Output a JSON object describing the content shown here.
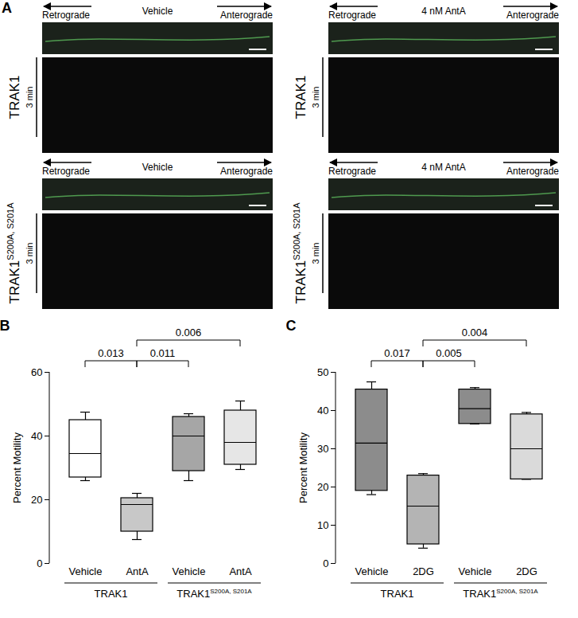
{
  "panel_a": {
    "letter": "A",
    "retrograde": "Retrograde",
    "anterograde": "Anterograde",
    "time_label": "3 min",
    "panels": [
      {
        "construct": {
          "name": "TRAK1"
        },
        "condition": "Vehicle"
      },
      {
        "construct": {
          "name": "TRAK1"
        },
        "condition": "4 nM AntA"
      },
      {
        "construct": {
          "name": "TRAK1",
          "superscript": "S200A, S201A"
        },
        "condition": "Vehicle"
      },
      {
        "construct": {
          "name": "TRAK1",
          "superscript": "S200A, S201A"
        },
        "condition": "4 nM AntA"
      }
    ]
  },
  "chart_data": [
    {
      "type": "box",
      "letter": "B",
      "ylabel": "Percent Motility",
      "categories": [
        "Vehicle",
        "AntA",
        "Vehicle",
        "AntA"
      ],
      "groups": [
        {
          "name": "TRAK1",
          "members": [
            0,
            1
          ]
        },
        {
          "name": "TRAK1",
          "superscript": "S200A, S201A",
          "members": [
            2,
            3
          ]
        }
      ],
      "boxes": [
        {
          "min": 26,
          "q1": 27,
          "median": 34.5,
          "q3": 45,
          "max": 47.5
        },
        {
          "min": 7.5,
          "q1": 10,
          "median": 18.5,
          "q3": 20.5,
          "max": 22
        },
        {
          "min": 26,
          "q1": 29,
          "median": 40,
          "q3": 46,
          "max": 47
        },
        {
          "min": 29.5,
          "q1": 31,
          "median": 38,
          "q3": 48,
          "max": 51
        }
      ],
      "colors": [
        "#ffffff",
        "#c8c8c8",
        "#a6a6a6",
        "#e6e6e6"
      ],
      "ylim": [
        0,
        60
      ],
      "yticks": [
        0,
        20,
        40,
        60
      ],
      "comparisons": [
        {
          "between": [
            0,
            1
          ],
          "p": 0.013
        },
        {
          "between": [
            1,
            2
          ],
          "p": 0.011
        },
        {
          "between": [
            1,
            3
          ],
          "p": 0.006
        }
      ]
    },
    {
      "type": "box",
      "letter": "C",
      "ylabel": "Percent Motility",
      "categories": [
        "Vehicle",
        "2DG",
        "Vehicle",
        "2DG"
      ],
      "groups": [
        {
          "name": "TRAK1",
          "members": [
            0,
            1
          ]
        },
        {
          "name": "TRAK1",
          "superscript": "S200A, S201A",
          "members": [
            2,
            3
          ]
        }
      ],
      "boxes": [
        {
          "min": 18,
          "q1": 19,
          "median": 31.5,
          "q3": 45.5,
          "max": 47.5
        },
        {
          "min": 4,
          "q1": 5,
          "median": 15,
          "q3": 23,
          "max": 23.5
        },
        {
          "min": 36.5,
          "q1": 36.5,
          "median": 40.5,
          "q3": 45.5,
          "max": 46
        },
        {
          "min": 22,
          "q1": 22,
          "median": 30,
          "q3": 39,
          "max": 39.5
        }
      ],
      "colors": [
        "#8c8c8c",
        "#b4b4b4",
        "#8c8c8c",
        "#dadada"
      ],
      "ylim": [
        0,
        50
      ],
      "yticks": [
        0,
        10,
        20,
        30,
        40,
        50
      ],
      "comparisons": [
        {
          "between": [
            0,
            1
          ],
          "p": 0.017
        },
        {
          "between": [
            1,
            2
          ],
          "p": 0.005
        },
        {
          "between": [
            1,
            3
          ],
          "p": 0.004
        }
      ]
    }
  ]
}
